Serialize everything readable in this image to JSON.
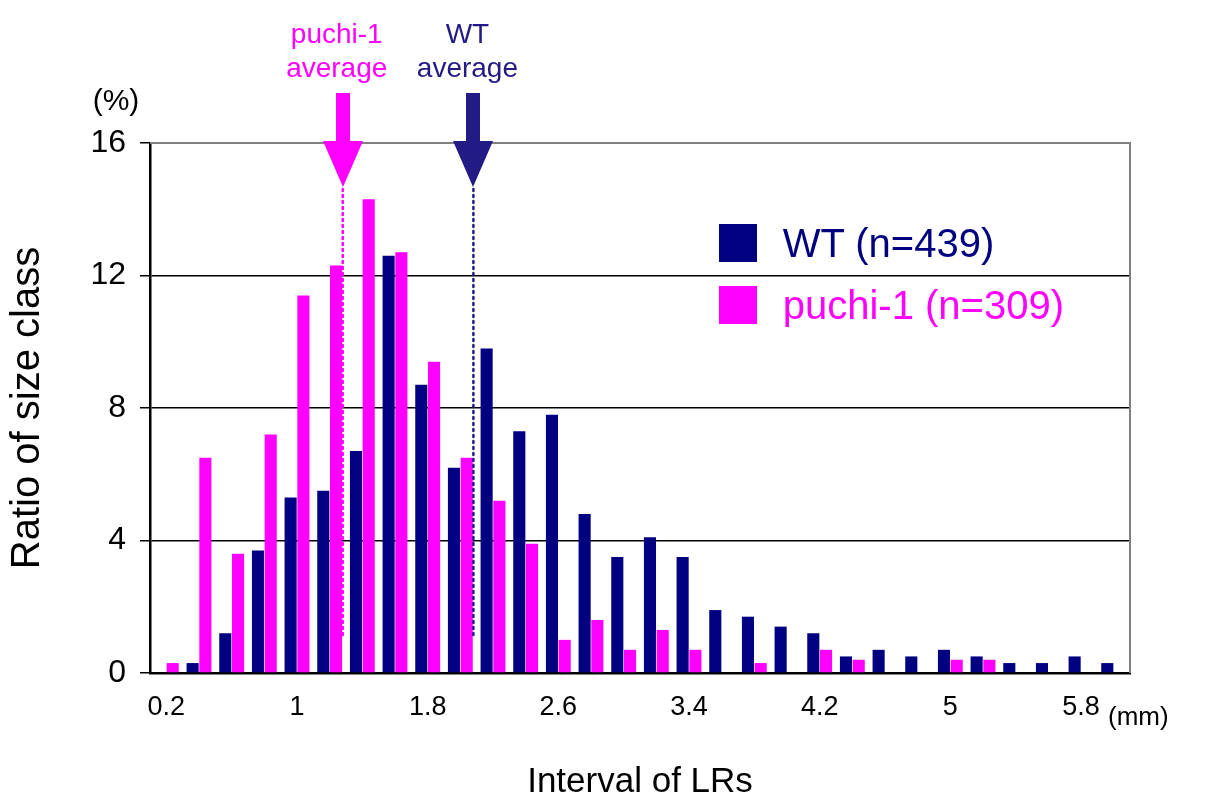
{
  "chart_data": {
    "type": "bar",
    "xlabel": "Interval of LRs",
    "ylabel": "Ratio of size class",
    "x": [
      0.2,
      0.4,
      0.6,
      0.8,
      1.0,
      1.2,
      1.4,
      1.6,
      1.8,
      2.0,
      2.2,
      2.4,
      2.6,
      2.8,
      3.0,
      3.2,
      3.4,
      3.6,
      3.8,
      4.0,
      4.2,
      4.4,
      4.6,
      4.8,
      5.0,
      5.2,
      5.4,
      5.6,
      5.8,
      6.0
    ],
    "series": [
      {
        "name": "WT (n=439)",
        "color": "#000080",
        "values": [
          0,
          0.3,
          1.2,
          3.7,
          5.3,
          5.5,
          6.7,
          12.6,
          8.7,
          6.2,
          9.8,
          7.3,
          7.8,
          4.8,
          3.5,
          4.1,
          3.5,
          1.9,
          1.7,
          1.4,
          1.2,
          0.5,
          0.7,
          0.5,
          0.7,
          0.5,
          0.3,
          0.3,
          0.5,
          0.3
        ]
      },
      {
        "name": "puchi-1 (n=309)",
        "color": "#ff00ff",
        "values": [
          0.3,
          6.5,
          3.6,
          7.2,
          11.4,
          12.3,
          14.3,
          12.7,
          9.4,
          6.5,
          5.2,
          3.9,
          1.0,
          1.6,
          0.7,
          1.3,
          0.7,
          0,
          0.3,
          0,
          0.7,
          0.4,
          0,
          0,
          0.4,
          0.4,
          0,
          0,
          0,
          0
        ]
      }
    ],
    "xlim": [
      0.1,
      6.1
    ],
    "xticks": [
      0.2,
      1,
      1.8,
      2.6,
      3.4,
      4.2,
      5,
      5.8
    ],
    "ylim": [
      0,
      16
    ],
    "yticks": [
      0,
      4,
      8,
      12,
      16
    ],
    "grid": "y",
    "legend": "top right",
    "ref_lines": [
      {
        "axis": "x",
        "value": 1.28,
        "label": "puchi-1 average",
        "color": "#ff00ff",
        "line_style": "dotted"
      },
      {
        "axis": "x",
        "value": 2.08,
        "label": "WT average",
        "color": "#231b85",
        "line_style": "dotted"
      }
    ],
    "annotations": [
      "(%)",
      "(mm)"
    ]
  }
}
